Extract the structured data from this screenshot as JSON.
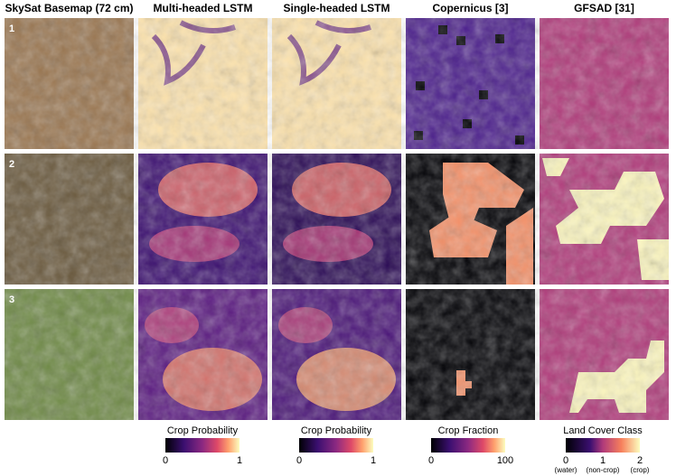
{
  "columns": [
    {
      "title": "SkySat Basemap (72 cm)"
    },
    {
      "title": "Multi-headed LSTM"
    },
    {
      "title": "Single-headed LSTM"
    },
    {
      "title": "Copernicus [3]"
    },
    {
      "title": "GFSAD [31]"
    }
  ],
  "rows": [
    {
      "label": "1"
    },
    {
      "label": "2"
    },
    {
      "label": "3"
    }
  ],
  "colorbars": [
    {
      "title": "Crop Probability",
      "ticks": [
        "0",
        "1"
      ]
    },
    {
      "title": "Crop Probability",
      "ticks": [
        "0",
        "1"
      ]
    },
    {
      "title": "Crop Fraction",
      "ticks": [
        "0",
        "100"
      ]
    },
    {
      "title": "Land Cover Class",
      "ticks": [
        "0",
        "1",
        "2"
      ],
      "sublabels": [
        "(water)",
        "(non-crop)",
        "(crop)"
      ]
    }
  ]
}
